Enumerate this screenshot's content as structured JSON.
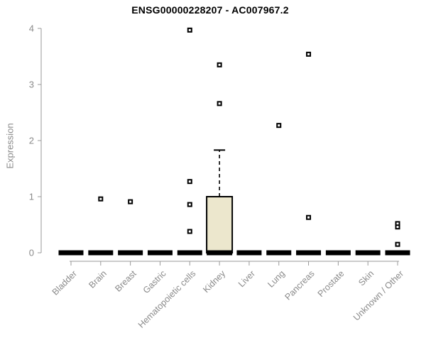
{
  "chart_data": {
    "type": "boxplot",
    "title": "ENSG00000228207 - AC007967.2",
    "ylabel": "Expression",
    "xlabel": "",
    "ylim": [
      0,
      4
    ],
    "yticks": [
      0,
      1,
      2,
      3,
      4
    ],
    "grid": false,
    "legend": "none",
    "categories": [
      "Bladder",
      "Brain",
      "Breast",
      "Gastric",
      "Hematopoietic cells",
      "Kidney",
      "Liver",
      "Lung",
      "Pancreas",
      "Prostate",
      "Skin",
      "Unknown / Other"
    ],
    "boxes": [
      {
        "category": "Bladder",
        "low": 0,
        "q1": 0,
        "median": 0,
        "q3": 0,
        "high": 0,
        "outliers": []
      },
      {
        "category": "Brain",
        "low": 0,
        "q1": 0,
        "median": 0,
        "q3": 0,
        "high": 0,
        "outliers": [
          0.96
        ]
      },
      {
        "category": "Breast",
        "low": 0,
        "q1": 0,
        "median": 0,
        "q3": 0,
        "high": 0,
        "outliers": [
          0.91
        ]
      },
      {
        "category": "Gastric",
        "low": 0,
        "q1": 0,
        "median": 0,
        "q3": 0,
        "high": 0,
        "outliers": []
      },
      {
        "category": "Hematopoietic cells",
        "low": 0,
        "q1": 0,
        "median": 0,
        "q3": 0,
        "high": 0,
        "outliers": [
          3.97,
          1.27,
          0.86,
          0.38
        ]
      },
      {
        "category": "Kidney",
        "low": 0,
        "q1": 0,
        "median": 0,
        "q3": 1.0,
        "high": 1.83,
        "outliers": [
          3.35,
          2.66
        ]
      },
      {
        "category": "Liver",
        "low": 0,
        "q1": 0,
        "median": 0,
        "q3": 0,
        "high": 0,
        "outliers": []
      },
      {
        "category": "Lung",
        "low": 0,
        "q1": 0,
        "median": 0,
        "q3": 0,
        "high": 0,
        "outliers": [
          2.27
        ]
      },
      {
        "category": "Pancreas",
        "low": 0,
        "q1": 0,
        "median": 0,
        "q3": 0,
        "high": 0,
        "outliers": [
          3.54,
          0.63
        ]
      },
      {
        "category": "Prostate",
        "low": 0,
        "q1": 0,
        "median": 0,
        "q3": 0,
        "high": 0,
        "outliers": []
      },
      {
        "category": "Skin",
        "low": 0,
        "q1": 0,
        "median": 0,
        "q3": 0,
        "high": 0,
        "outliers": []
      },
      {
        "category": "Unknown / Other",
        "low": 0,
        "q1": 0,
        "median": 0,
        "q3": 0,
        "high": 0,
        "outliers": [
          0.52,
          0.46,
          0.15
        ]
      }
    ],
    "colors": {
      "box_fill": "#ECE7CD",
      "box_border": "#000000",
      "flat_bar": "#000000",
      "outlier_stroke": "#000000",
      "outlier_fill": "#ffffff",
      "axis_line": "#999999",
      "tick_text": "#8a8a8a",
      "title_text": "#000000"
    }
  }
}
